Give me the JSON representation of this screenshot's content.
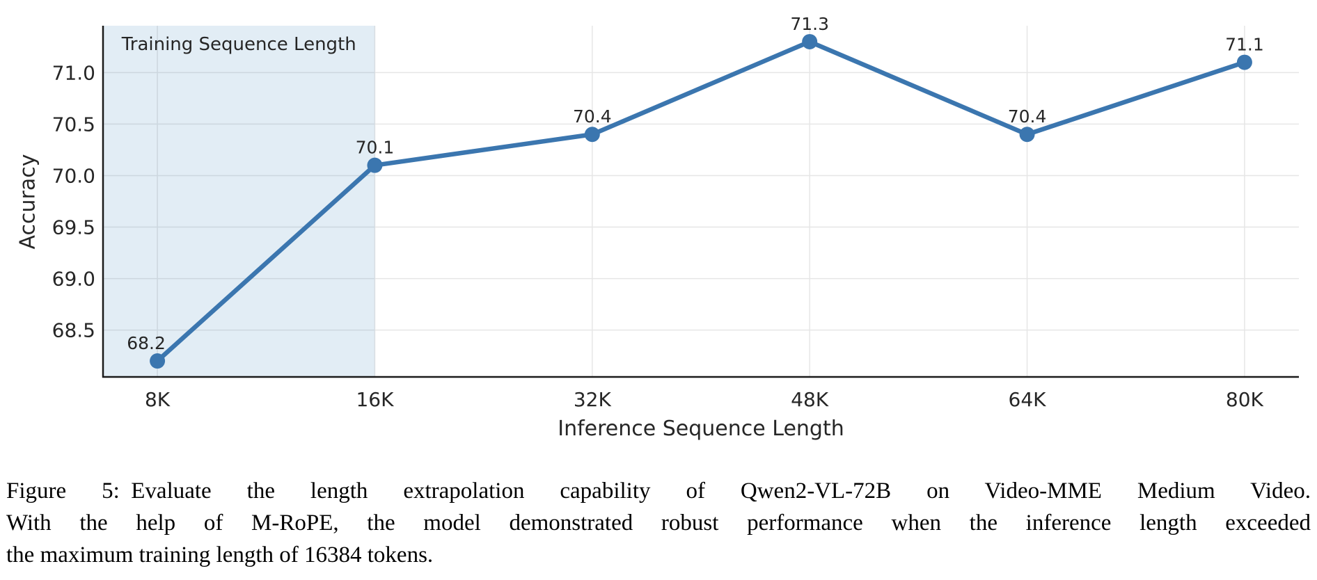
{
  "figure": {
    "caption_lines": [
      "Figure 5: Evaluate the length extrapolation capability of Qwen2-VL-72B on Video-MME Medium Video.",
      "With the help of M-RoPE, the model demonstrated robust performance when the inference length exceeded",
      "the maximum training length of 16384 tokens."
    ]
  },
  "chart_data": {
    "type": "line",
    "title": "",
    "xlabel": "Inference Sequence Length",
    "ylabel": "Accuracy",
    "categories": [
      "8K",
      "16K",
      "32K",
      "48K",
      "64K",
      "80K"
    ],
    "values": [
      68.2,
      70.1,
      70.4,
      71.3,
      70.4,
      71.1
    ],
    "point_labels": [
      "68.2",
      "70.1",
      "70.4",
      "71.3",
      "70.4",
      "71.1"
    ],
    "point_label_dx": [
      -16,
      0,
      0,
      0,
      0,
      0
    ],
    "yticks": [
      68.5,
      69.0,
      69.5,
      70.0,
      70.5,
      71.0
    ],
    "ytick_labels": [
      "68.5",
      "69.0",
      "69.5",
      "70.0",
      "70.5",
      "71.0"
    ],
    "xlim": [
      -0.25,
      5.25
    ],
    "ylim": [
      68.045,
      71.455
    ],
    "grid": true,
    "legend": "none",
    "band": {
      "label": "Training Sequence Length",
      "from_x": -0.25,
      "to_index": 1
    },
    "colors": {
      "line": "#3b76af",
      "marker": "#3b76af",
      "band_fill": "rgba(31,119,180,0.13)",
      "grid": "#e6e6e6",
      "spine": "#1a1a1a",
      "text": "#262626"
    }
  }
}
